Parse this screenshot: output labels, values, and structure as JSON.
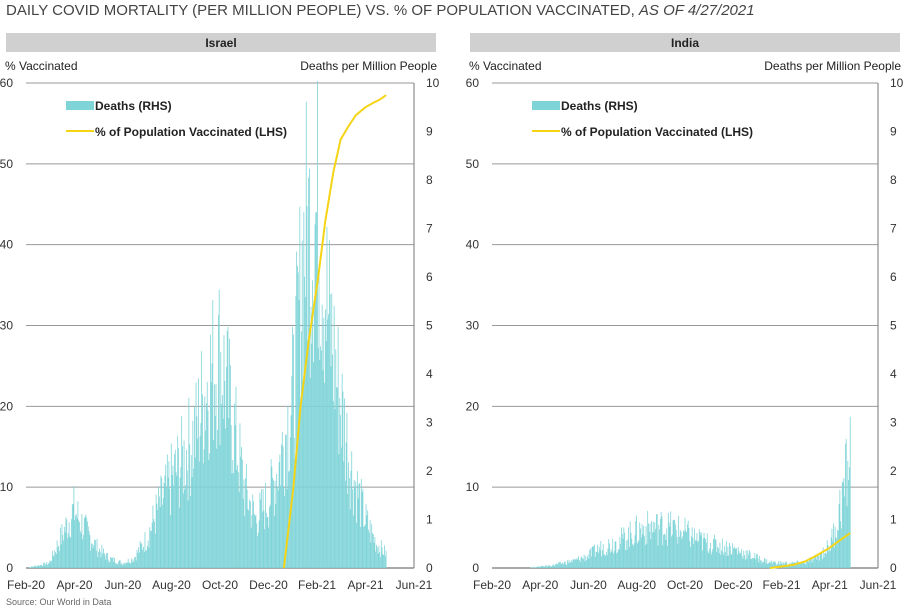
{
  "header": {
    "title_main": "DAILY COVID MORTALITY (PER MILLION PEOPLE) VS. % OF POPULATION VACCINATED, ",
    "title_date": "AS OF 4/27/2021"
  },
  "source": "Source: Our World in Data",
  "colors": {
    "deaths": "#7fd4d8",
    "vaccinated": "#f5d416",
    "header_bg": "#d0d0d0",
    "grid": "#999999"
  },
  "chart_data": [
    {
      "type": "bar",
      "title": "Israel",
      "ylabel_left": "% Vaccinated",
      "ylabel_right": "Deaths per Million People",
      "ylim_left": [
        0,
        60
      ],
      "ylim_right": [
        0,
        10
      ],
      "yticks_left": [
        "0",
        "10",
        "20",
        "30",
        "40",
        "50",
        "60"
      ],
      "yticks_right": [
        "0",
        "1",
        "2",
        "3",
        "4",
        "5",
        "6",
        "7",
        "8",
        "9",
        "10"
      ],
      "xticks": [
        "Feb-20",
        "Apr-20",
        "Jun-20",
        "Aug-20",
        "Oct-20",
        "Dec-20",
        "Feb-21",
        "Apr-21",
        "Jun-21"
      ],
      "xlim": [
        "2020-02-01",
        "2021-06-01"
      ],
      "legend": [
        "Deaths (RHS)",
        "% of Population Vaccinated (LHS)"
      ],
      "legend_position": "top-left",
      "series": [
        {
          "name": "Deaths (RHS)",
          "axis": "right",
          "x": [
            "2020-02-01",
            "2020-03-01",
            "2020-03-15",
            "2020-04-01",
            "2020-04-15",
            "2020-05-01",
            "2020-05-15",
            "2020-06-01",
            "2020-06-15",
            "2020-07-01",
            "2020-07-15",
            "2020-08-01",
            "2020-08-15",
            "2020-09-01",
            "2020-09-15",
            "2020-10-01",
            "2020-10-15",
            "2020-11-01",
            "2020-11-15",
            "2020-12-01",
            "2020-12-15",
            "2021-01-01",
            "2021-01-15",
            "2021-02-01",
            "2021-02-15",
            "2021-03-01",
            "2021-03-15",
            "2021-04-01",
            "2021-04-15",
            "2021-04-27"
          ],
          "values": [
            0,
            0.1,
            0.6,
            1.2,
            0.8,
            0.4,
            0.2,
            0.1,
            0.2,
            0.6,
            1.2,
            1.8,
            2.2,
            2.8,
            3.8,
            4.4,
            3.2,
            1.6,
            1.0,
            1.4,
            2.2,
            3.6,
            6.8,
            7.2,
            5.0,
            3.4,
            2.0,
            1.0,
            0.5,
            0.3
          ]
        },
        {
          "name": "% of Population Vaccinated (LHS)",
          "axis": "left",
          "x": [
            "2020-12-20",
            "2021-01-01",
            "2021-01-10",
            "2021-01-20",
            "2021-02-01",
            "2021-02-10",
            "2021-02-20",
            "2021-03-01",
            "2021-03-10",
            "2021-03-20",
            "2021-04-01",
            "2021-04-10",
            "2021-04-20",
            "2021-04-27"
          ],
          "values": [
            0,
            10,
            20,
            28,
            36,
            43,
            49,
            53,
            54.5,
            56,
            57,
            57.5,
            58,
            58.5
          ]
        }
      ]
    },
    {
      "type": "bar",
      "title": "India",
      "ylabel_left": "% Vaccinated",
      "ylabel_right": "Deaths per Million People",
      "ylim_left": [
        0,
        60
      ],
      "ylim_right": [
        0,
        10
      ],
      "yticks_left": [
        "0",
        "10",
        "20",
        "30",
        "40",
        "50",
        "60"
      ],
      "yticks_right": [
        "0",
        "1",
        "2",
        "3",
        "4",
        "5",
        "6",
        "7",
        "8",
        "9",
        "10"
      ],
      "xticks": [
        "Feb-20",
        "Apr-20",
        "Jun-20",
        "Aug-20",
        "Oct-20",
        "Dec-20",
        "Feb-21",
        "Apr-21",
        "Jun-21"
      ],
      "xlim": [
        "2020-02-01",
        "2021-06-01"
      ],
      "legend": [
        "Deaths (RHS)",
        "% of Population Vaccinated (LHS)"
      ],
      "legend_position": "top-left",
      "series": [
        {
          "name": "Deaths (RHS)",
          "axis": "right",
          "x": [
            "2020-02-01",
            "2020-03-15",
            "2020-04-15",
            "2020-05-15",
            "2020-06-01",
            "2020-06-15",
            "2020-07-01",
            "2020-07-15",
            "2020-08-01",
            "2020-08-15",
            "2020-09-01",
            "2020-09-15",
            "2020-10-01",
            "2020-10-15",
            "2020-11-01",
            "2020-11-15",
            "2020-12-01",
            "2020-12-15",
            "2021-01-01",
            "2021-01-15",
            "2021-02-01",
            "2021-02-15",
            "2021-03-01",
            "2021-03-15",
            "2021-04-01",
            "2021-04-10",
            "2021-04-20",
            "2021-04-27"
          ],
          "values": [
            0,
            0,
            0.05,
            0.15,
            0.25,
            0.4,
            0.5,
            0.6,
            0.75,
            0.82,
            0.85,
            0.82,
            0.72,
            0.6,
            0.5,
            0.45,
            0.4,
            0.3,
            0.2,
            0.12,
            0.1,
            0.1,
            0.12,
            0.2,
            0.45,
            0.9,
            1.7,
            2.4
          ]
        },
        {
          "name": "% of Population Vaccinated (LHS)",
          "axis": "left",
          "x": [
            "2021-01-16",
            "2021-02-01",
            "2021-02-15",
            "2021-03-01",
            "2021-03-15",
            "2021-04-01",
            "2021-04-15",
            "2021-04-27"
          ],
          "values": [
            0,
            0.2,
            0.4,
            0.8,
            1.5,
            2.5,
            3.5,
            4.3
          ]
        }
      ]
    }
  ]
}
